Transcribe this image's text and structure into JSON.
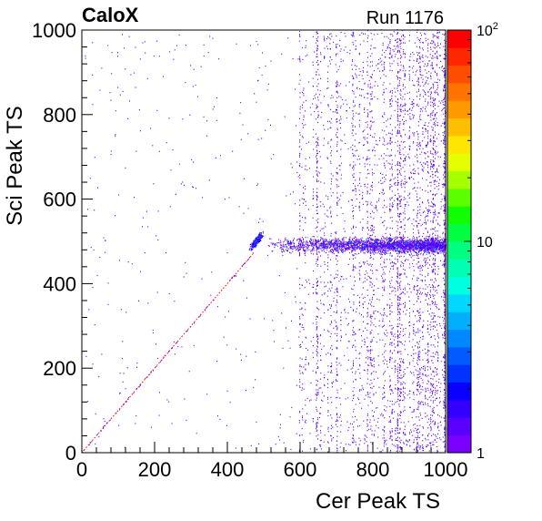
{
  "chart_data": {
    "type": "heatmap",
    "title_left": "CaloX",
    "title_right": "Run 1176",
    "xlabel": "Cer Peak TS",
    "ylabel": "Sci Peak TS",
    "xlim": [
      0,
      1000
    ],
    "ylim": [
      0,
      1000
    ],
    "xticks": [
      {
        "value": 0,
        "label": "0"
      },
      {
        "value": 200,
        "label": "200"
      },
      {
        "value": 400,
        "label": "400"
      },
      {
        "value": 600,
        "label": "600"
      },
      {
        "value": 800,
        "label": "800"
      },
      {
        "value": 1000,
        "label": "1000"
      }
    ],
    "yticks": [
      {
        "value": 0,
        "label": "0"
      },
      {
        "value": 200,
        "label": "200"
      },
      {
        "value": 400,
        "label": "400"
      },
      {
        "value": 600,
        "label": "600"
      },
      {
        "value": 800,
        "label": "800"
      },
      {
        "value": 1000,
        "label": "1000"
      }
    ],
    "zscale": "log",
    "zlim": [
      1,
      100
    ],
    "zticks": [
      {
        "value": 1,
        "label": "1"
      },
      {
        "value": 10,
        "label": "10"
      },
      {
        "value": 100,
        "base": "10",
        "exp": "2"
      }
    ],
    "palette": [
      "#7a00ff",
      "#5a00ff",
      "#3300ff",
      "#0a00ff",
      "#0033ff",
      "#005cff",
      "#0088ff",
      "#00b0ff",
      "#00d8ff",
      "#00ffe0",
      "#00ffb0",
      "#00ff80",
      "#00ff40",
      "#10ff00",
      "#5cff00",
      "#a8ff00",
      "#e6ff00",
      "#ffe600",
      "#ffbf00",
      "#ff9900",
      "#ff7300",
      "#ff4d00",
      "#ff2600",
      "#ff0000"
    ],
    "diagonal_line": {
      "x": [
        0,
        470
      ],
      "y": [
        0,
        470
      ],
      "color": "#ff0000",
      "style": "dotted"
    },
    "clusters": [
      {
        "name": "diagonal-events",
        "x_range": [
          0,
          470
        ],
        "relation": "y=x",
        "level": 1
      },
      {
        "name": "main-cluster",
        "x_center": 480,
        "y_center": 500,
        "x_spread": 25,
        "y_spread": 20,
        "level": 3
      },
      {
        "name": "horizontal-band",
        "x_range": [
          510,
          1000
        ],
        "y_center": 490,
        "y_spread": 25,
        "level": 2
      },
      {
        "name": "vertical-stripes",
        "x_range": [
          550,
          1000
        ],
        "y_range": [
          0,
          1000
        ],
        "level": 1
      },
      {
        "name": "uniform-background",
        "x_range": [
          0,
          1000
        ],
        "y_range": [
          0,
          1000
        ],
        "level": 1
      }
    ]
  }
}
